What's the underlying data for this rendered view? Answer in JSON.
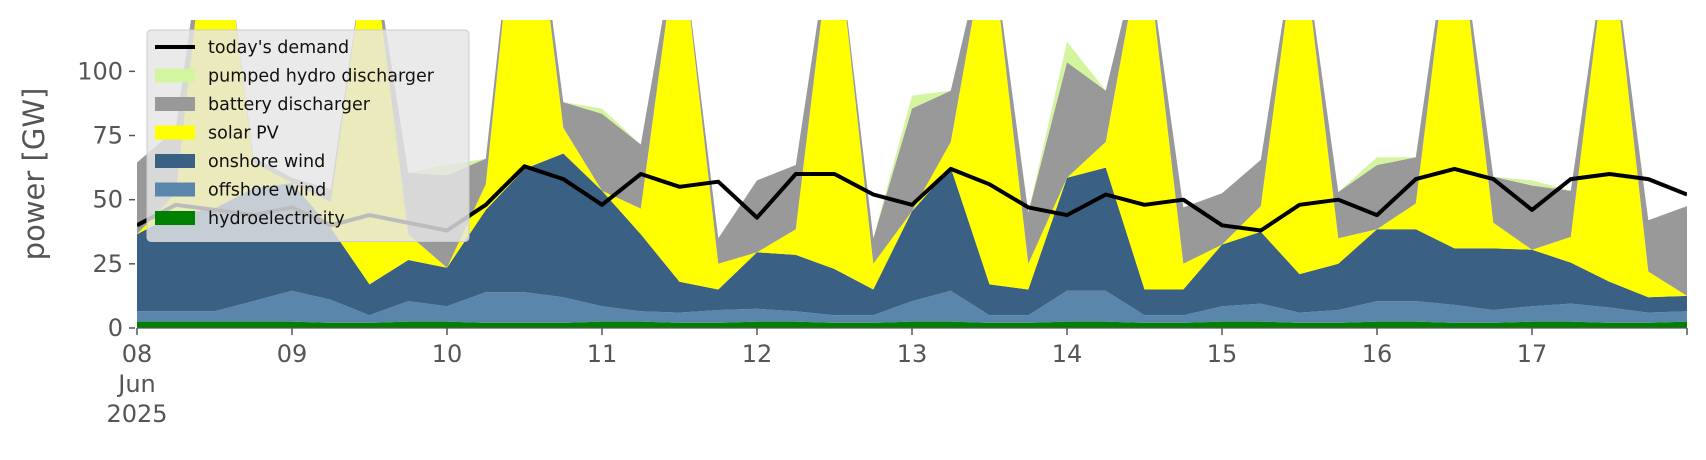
{
  "chart_data": {
    "type": "area",
    "ylabel": "power [GW]",
    "ylim": [
      0,
      120
    ],
    "yticks": [
      0,
      25,
      50,
      75,
      100
    ],
    "x_start": "2025-06-08T00:00",
    "x_end": "2025-06-18T00:00",
    "x_tick_labels": [
      "08",
      "09",
      "10",
      "11",
      "12",
      "13",
      "14",
      "15",
      "16",
      "17"
    ],
    "x_first_tick_sublabels": [
      "Jun",
      "2025"
    ],
    "grid": false,
    "legend_placement": "top-left",
    "stacking_order": [
      "hydroelectricity",
      "offshore wind",
      "onshore wind",
      "solar PV",
      "battery discharger",
      "pumped hydro discharger"
    ],
    "legend": [
      {
        "label": "today's demand",
        "color": "#000000",
        "kind": "line"
      },
      {
        "label": "pumped hydro discharger",
        "color": "#d4f5a0",
        "kind": "patch"
      },
      {
        "label": "battery discharger",
        "color": "#999999",
        "kind": "patch"
      },
      {
        "label": "solar PV",
        "color": "#ffff00",
        "kind": "patch"
      },
      {
        "label": "onshore wind",
        "color": "#3a6084",
        "kind": "patch"
      },
      {
        "label": "offshore wind",
        "color": "#5b86ab",
        "kind": "patch"
      },
      {
        "label": "hydroelectricity",
        "color": "#008000",
        "kind": "patch"
      }
    ],
    "x_days": [
      0,
      0.25,
      0.5,
      0.75,
      1,
      1.25,
      1.5,
      1.75,
      2,
      2.25,
      2.5,
      2.75,
      3,
      3.25,
      3.5,
      3.75,
      4,
      4.25,
      4.5,
      4.75,
      5,
      5.25,
      5.5,
      5.75,
      6,
      6.25,
      6.5,
      6.75,
      7,
      7.25,
      7.5,
      7.75,
      8,
      8.25,
      8.5,
      8.75,
      9,
      9.25,
      9.5,
      9.75,
      10
    ],
    "series": [
      {
        "name": "hydroelectricity",
        "color": "#008000",
        "values": [
          2.5,
          2.5,
          2.5,
          2.5,
          2.5,
          2,
          2,
          2.5,
          2.5,
          2,
          2,
          2,
          2.5,
          2.5,
          2,
          2,
          2.5,
          2.5,
          2,
          2,
          2.5,
          2.5,
          2,
          2,
          2.5,
          2.5,
          2,
          2,
          2.5,
          2.5,
          2,
          2,
          2.5,
          2.5,
          2,
          2,
          2.5,
          2.5,
          2,
          2,
          2.5
        ]
      },
      {
        "name": "offshore wind",
        "color": "#5b86ab",
        "values": [
          4,
          4,
          4,
          8,
          12,
          9,
          3,
          8,
          6,
          12,
          12,
          10,
          6,
          4,
          4,
          5,
          5,
          4,
          3,
          3,
          8,
          12,
          3,
          3,
          12,
          12,
          3,
          3,
          6,
          7,
          4,
          5,
          8,
          8,
          7,
          5,
          6,
          7,
          6,
          4,
          4
        ]
      },
      {
        "name": "onshore wind",
        "color": "#3a6084",
        "values": [
          30,
          38,
          40,
          44,
          42,
          28,
          12,
          16,
          15,
          32,
          48,
          56,
          45,
          30,
          12,
          8,
          22,
          22,
          18,
          10,
          35,
          48,
          12,
          10,
          44,
          48,
          10,
          10,
          24,
          28,
          15,
          18,
          28,
          28,
          22,
          24,
          22,
          16,
          10,
          6,
          6
        ]
      },
      {
        "name": "solar PV",
        "color": "#ffff00",
        "values": [
          0,
          8,
          140,
          10,
          0,
          10,
          140,
          10,
          0,
          10,
          140,
          10,
          0,
          10,
          140,
          10,
          0,
          10,
          140,
          10,
          0,
          10,
          140,
          10,
          0,
          10,
          140,
          10,
          0,
          10,
          140,
          10,
          0,
          10,
          140,
          10,
          0,
          10,
          140,
          10,
          0
        ]
      },
      {
        "name": "battery discharger",
        "color": "#999999",
        "values": [
          28,
          25,
          0,
          2,
          2,
          5,
          0,
          24,
          36,
          10,
          0,
          10,
          30,
          25,
          0,
          10,
          28,
          25,
          0,
          10,
          40,
          20,
          0,
          20,
          45,
          20,
          0,
          22,
          20,
          18,
          0,
          18,
          25,
          18,
          0,
          18,
          25,
          18,
          0,
          20,
          35
        ]
      },
      {
        "name": "pumped hydro discharger",
        "color": "#d4f5a0",
        "values": [
          0,
          0,
          0,
          0,
          0,
          0,
          0,
          0,
          4,
          0,
          0,
          0,
          2,
          0,
          0,
          0,
          0,
          0,
          0,
          0,
          5,
          0,
          0,
          0,
          8,
          0,
          0,
          0,
          0,
          0,
          0,
          0,
          3,
          0,
          0,
          0,
          2,
          0,
          0,
          0,
          0
        ]
      },
      {
        "name": "today's demand",
        "color": "#000000",
        "kind": "line",
        "values": [
          40,
          48,
          46,
          44,
          47,
          40,
          44,
          41,
          38,
          48,
          63,
          58,
          48,
          60,
          55,
          57,
          43,
          60,
          60,
          52,
          48,
          62,
          56,
          47,
          44,
          52,
          48,
          50,
          40,
          38,
          48,
          50,
          44,
          58,
          62,
          58,
          46,
          58,
          60,
          58,
          52
        ]
      }
    ]
  }
}
